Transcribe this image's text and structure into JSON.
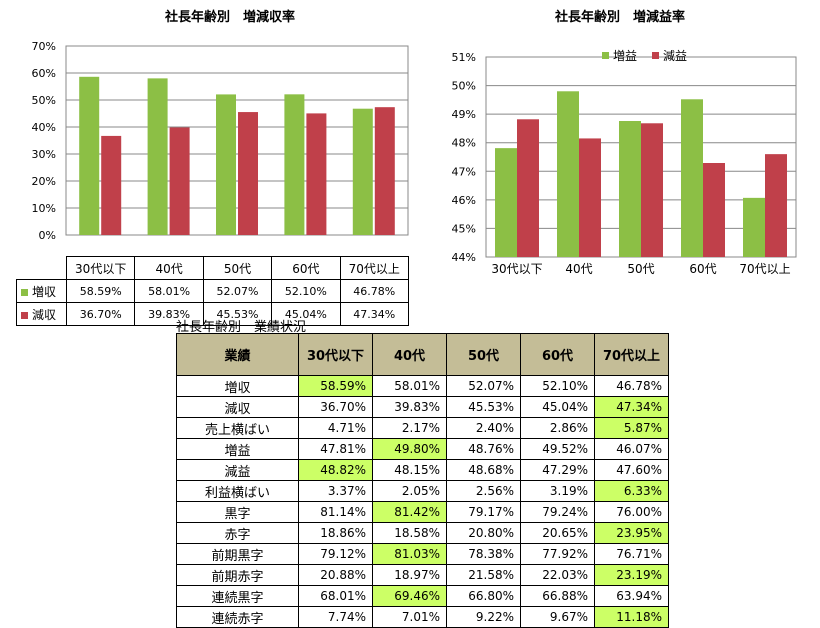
{
  "chart_data": [
    {
      "type": "bar",
      "title": "社長年齢別　増減収率",
      "categories": [
        "30代以下",
        "40代",
        "50代",
        "60代",
        "70代以上"
      ],
      "ylim": [
        0,
        70
      ],
      "yticks": [
        "0%",
        "10%",
        "20%",
        "30%",
        "40%",
        "50%",
        "60%",
        "70%"
      ],
      "ytick_values": [
        0,
        10,
        20,
        30,
        40,
        50,
        60,
        70
      ],
      "grid": true,
      "series": [
        {
          "name": "増収",
          "color": "#8cbf45",
          "values": [
            58.59,
            58.01,
            52.07,
            52.1,
            46.78
          ],
          "labels": [
            "58.59%",
            "58.01%",
            "52.07%",
            "52.10%",
            "46.78%"
          ]
        },
        {
          "name": "減収",
          "color": "#c0404a",
          "values": [
            36.7,
            39.83,
            45.53,
            45.04,
            47.34
          ],
          "labels": [
            "36.70%",
            "39.83%",
            "45.53%",
            "45.04%",
            "47.34%"
          ]
        }
      ]
    },
    {
      "type": "bar",
      "title": "社長年齢別　増減益率",
      "categories": [
        "30代以下",
        "40代",
        "50代",
        "60代",
        "70代以上"
      ],
      "ylim": [
        44,
        51
      ],
      "yticks": [
        "44%",
        "45%",
        "46%",
        "47%",
        "48%",
        "49%",
        "50%",
        "51%"
      ],
      "ytick_values": [
        44,
        45,
        46,
        47,
        48,
        49,
        50,
        51
      ],
      "grid": true,
      "legend": "top",
      "series": [
        {
          "name": "増益",
          "color": "#8cbf45",
          "values": [
            47.81,
            49.8,
            48.76,
            49.52,
            46.07
          ]
        },
        {
          "name": "減益",
          "color": "#c0404a",
          "values": [
            48.82,
            48.15,
            48.68,
            47.29,
            47.6
          ]
        }
      ]
    },
    {
      "type": "table",
      "title": "社長年齢別　業績状況",
      "columns": [
        "業績",
        "30代以下",
        "40代",
        "50代",
        "60代",
        "70代以上"
      ],
      "highlight_color": "#ccff66",
      "header_color": "#c4bd97",
      "rows": [
        {
          "label": "増収",
          "values": [
            "58.59%",
            "58.01%",
            "52.07%",
            "52.10%",
            "46.78%"
          ],
          "hl": 0
        },
        {
          "label": "減収",
          "values": [
            "36.70%",
            "39.83%",
            "45.53%",
            "45.04%",
            "47.34%"
          ],
          "hl": 4
        },
        {
          "label": "売上横ばい",
          "values": [
            "4.71%",
            "2.17%",
            "2.40%",
            "2.86%",
            "5.87%"
          ],
          "hl": 4
        },
        {
          "label": "増益",
          "values": [
            "47.81%",
            "49.80%",
            "48.76%",
            "49.52%",
            "46.07%"
          ],
          "hl": 1
        },
        {
          "label": "減益",
          "values": [
            "48.82%",
            "48.15%",
            "48.68%",
            "47.29%",
            "47.60%"
          ],
          "hl": 0
        },
        {
          "label": "利益横ばい",
          "values": [
            "3.37%",
            "2.05%",
            "2.56%",
            "3.19%",
            "6.33%"
          ],
          "hl": 4
        },
        {
          "label": "黒字",
          "values": [
            "81.14%",
            "81.42%",
            "79.17%",
            "79.24%",
            "76.00%"
          ],
          "hl": 1
        },
        {
          "label": "赤字",
          "values": [
            "18.86%",
            "18.58%",
            "20.80%",
            "20.65%",
            "23.95%"
          ],
          "hl": 4
        },
        {
          "label": "前期黒字",
          "values": [
            "79.12%",
            "81.03%",
            "78.38%",
            "77.92%",
            "76.71%"
          ],
          "hl": 1
        },
        {
          "label": "前期赤字",
          "values": [
            "20.88%",
            "18.97%",
            "21.58%",
            "22.03%",
            "23.19%"
          ],
          "hl": 4
        },
        {
          "label": "連続黒字",
          "values": [
            "68.01%",
            "69.46%",
            "66.80%",
            "66.88%",
            "63.94%"
          ],
          "hl": 1
        },
        {
          "label": "連続赤字",
          "values": [
            "7.74%",
            "7.01%",
            "9.22%",
            "9.67%",
            "11.18%"
          ],
          "hl": 4
        }
      ]
    }
  ]
}
